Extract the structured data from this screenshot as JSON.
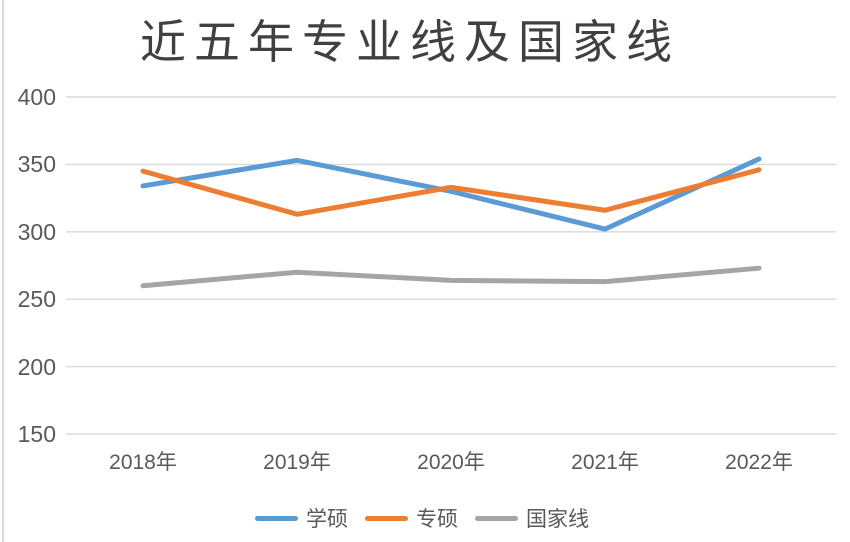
{
  "chart_data": {
    "type": "line",
    "title": "近五年专业线及国家线",
    "categories": [
      "2018年",
      "2019年",
      "2020年",
      "2021年",
      "2022年"
    ],
    "series": [
      {
        "name": "学硕",
        "color": "#5B9BD5",
        "values": [
          334,
          353,
          330,
          302,
          354
        ]
      },
      {
        "name": "专硕",
        "color": "#ED7D31",
        "values": [
          345,
          313,
          333,
          316,
          346
        ]
      },
      {
        "name": "国家线",
        "color": "#A5A5A5",
        "values": [
          260,
          270,
          264,
          263,
          273
        ]
      }
    ],
    "y_ticks": [
      400,
      350,
      300,
      250,
      200,
      150
    ],
    "ylim": [
      150,
      400
    ],
    "grid": true,
    "legend_position": "bottom",
    "colors": {
      "gridline": "#D9D9D9",
      "axis_text": "#595959",
      "title_text": "#404040",
      "background": "#FFFFFF",
      "border": "#D9D9D9"
    }
  }
}
